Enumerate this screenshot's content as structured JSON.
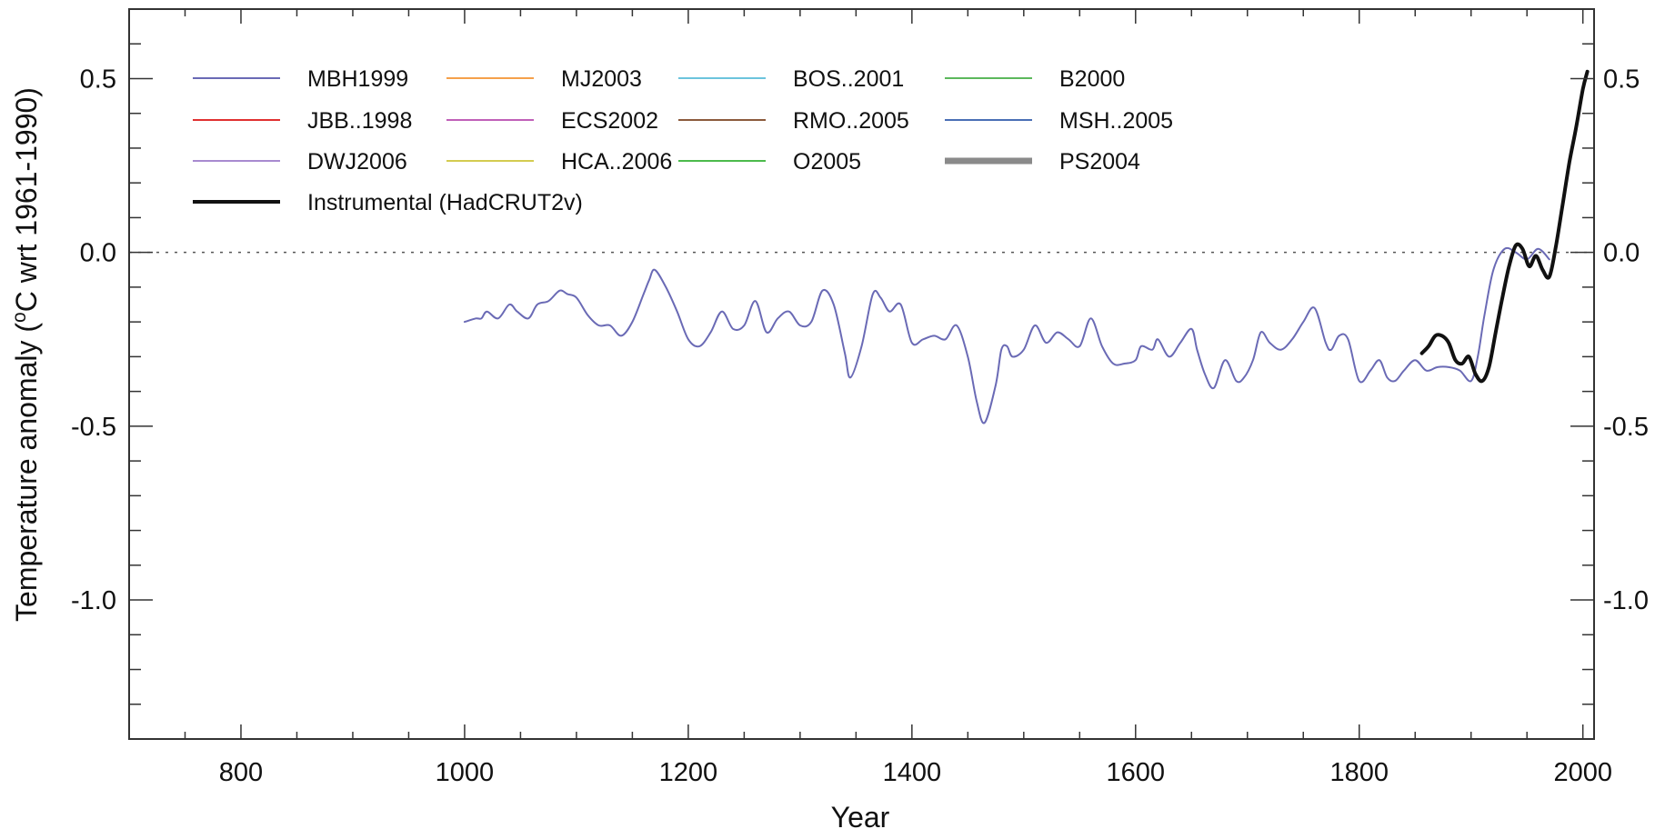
{
  "chart_data": {
    "type": "line",
    "xlabel": "Year",
    "ylabel": "Temperature anomaly  (°C wrt 1961-1990)",
    "ylabel_parts": {
      "before": "Temperature anomaly  (",
      "sup": "o",
      "after": "C wrt 1961-1990)"
    },
    "xlim": [
      700,
      2010
    ],
    "ylim": [
      -1.4,
      0.7
    ],
    "x_ticks": [
      800,
      1000,
      1200,
      1400,
      1600,
      1800,
      2000
    ],
    "x_tick_labels": [
      "800",
      "1000",
      "1200",
      "1400",
      "1600",
      "1800",
      "2000"
    ],
    "y_ticks": [
      0.5,
      0.0,
      -0.5,
      -1.0
    ],
    "y_tick_labels": [
      "0.5",
      "0.0",
      "-0.5",
      "-1.0"
    ],
    "zero_line": "dotted",
    "legend_position": "top-left",
    "legend": [
      {
        "name": "MBH1999",
        "color": "#6a6ab5",
        "width": 2
      },
      {
        "name": "MJ2003",
        "color": "#f5a04a",
        "width": 2
      },
      {
        "name": "BOS..2001",
        "color": "#6cc4dd",
        "width": 2
      },
      {
        "name": "B2000",
        "color": "#5cb85c",
        "width": 2
      },
      {
        "name": "JBB..1998",
        "color": "#e03030",
        "width": 2
      },
      {
        "name": "ECS2002",
        "color": "#c060b8",
        "width": 2
      },
      {
        "name": "RMO..2005",
        "color": "#8b5a3c",
        "width": 2
      },
      {
        "name": "MSH..2005",
        "color": "#4a6fb5",
        "width": 2
      },
      {
        "name": "DWJ2006",
        "color": "#a88ad0",
        "width": 2
      },
      {
        "name": "HCA..2006",
        "color": "#d4cc50",
        "width": 2
      },
      {
        "name": "O2005",
        "color": "#4cbb4c",
        "width": 2
      },
      {
        "name": "PS2004",
        "color": "#8a8a8a",
        "width": 7
      },
      {
        "name": "Instrumental (HadCRUT2v)",
        "color": "#111111",
        "width": 4
      }
    ],
    "series": [
      {
        "name": "MBH1999",
        "color": "#6a6ab5",
        "width": 2,
        "x": [
          1000,
          1010,
          1015,
          1020,
          1030,
          1040,
          1047,
          1057,
          1065,
          1075,
          1085,
          1092,
          1100,
          1110,
          1120,
          1130,
          1140,
          1150,
          1160,
          1165,
          1170,
          1180,
          1190,
          1200,
          1210,
          1220,
          1230,
          1240,
          1250,
          1260,
          1270,
          1280,
          1290,
          1300,
          1310,
          1320,
          1330,
          1340,
          1345,
          1355,
          1365,
          1372,
          1380,
          1390,
          1400,
          1410,
          1420,
          1430,
          1440,
          1450,
          1458,
          1465,
          1475,
          1480,
          1485,
          1490,
          1500,
          1510,
          1520,
          1530,
          1540,
          1550,
          1560,
          1570,
          1580,
          1590,
          1600,
          1605,
          1615,
          1620,
          1630,
          1640,
          1650,
          1655,
          1662,
          1670,
          1680,
          1690,
          1697,
          1705,
          1712,
          1720,
          1730,
          1740,
          1750,
          1760,
          1770,
          1775,
          1782,
          1790,
          1800,
          1810,
          1818,
          1825,
          1832,
          1840,
          1850,
          1860,
          1870,
          1880,
          1890,
          1900,
          1906,
          1912,
          1920,
          1930,
          1940,
          1950,
          1960,
          1970
        ],
        "y": [
          -0.2,
          -0.19,
          -0.19,
          -0.17,
          -0.19,
          -0.15,
          -0.17,
          -0.19,
          -0.15,
          -0.14,
          -0.11,
          -0.12,
          -0.13,
          -0.18,
          -0.21,
          -0.21,
          -0.24,
          -0.2,
          -0.12,
          -0.08,
          -0.05,
          -0.1,
          -0.17,
          -0.25,
          -0.27,
          -0.23,
          -0.17,
          -0.22,
          -0.21,
          -0.14,
          -0.23,
          -0.19,
          -0.17,
          -0.21,
          -0.2,
          -0.11,
          -0.15,
          -0.29,
          -0.36,
          -0.27,
          -0.12,
          -0.13,
          -0.17,
          -0.15,
          -0.26,
          -0.25,
          -0.24,
          -0.25,
          -0.21,
          -0.3,
          -0.43,
          -0.49,
          -0.38,
          -0.28,
          -0.27,
          -0.3,
          -0.28,
          -0.21,
          -0.26,
          -0.23,
          -0.25,
          -0.27,
          -0.19,
          -0.27,
          -0.32,
          -0.32,
          -0.31,
          -0.27,
          -0.28,
          -0.25,
          -0.3,
          -0.26,
          -0.22,
          -0.28,
          -0.35,
          -0.39,
          -0.31,
          -0.37,
          -0.36,
          -0.31,
          -0.23,
          -0.26,
          -0.28,
          -0.25,
          -0.2,
          -0.16,
          -0.26,
          -0.28,
          -0.24,
          -0.25,
          -0.37,
          -0.34,
          -0.31,
          -0.36,
          -0.37,
          -0.34,
          -0.31,
          -0.34,
          -0.33,
          -0.33,
          -0.34,
          -0.37,
          -0.3,
          -0.18,
          -0.05,
          0.01,
          0.0,
          -0.02,
          0.01,
          -0.02
        ]
      },
      {
        "name": "Instrumental (HadCRUT2v)",
        "color": "#111111",
        "width": 4,
        "x": [
          1856,
          1862,
          1868,
          1874,
          1880,
          1886,
          1892,
          1898,
          1904,
          1910,
          1916,
          1922,
          1928,
          1934,
          1940,
          1946,
          1952,
          1958,
          1964,
          1970,
          1976,
          1982,
          1988,
          1994,
          2000,
          2004
        ],
        "y": [
          -0.29,
          -0.27,
          -0.24,
          -0.24,
          -0.26,
          -0.31,
          -0.32,
          -0.3,
          -0.35,
          -0.37,
          -0.33,
          -0.23,
          -0.13,
          -0.04,
          0.02,
          0.01,
          -0.04,
          -0.01,
          -0.05,
          -0.07,
          0.02,
          0.14,
          0.26,
          0.36,
          0.47,
          0.52
        ]
      }
    ]
  }
}
